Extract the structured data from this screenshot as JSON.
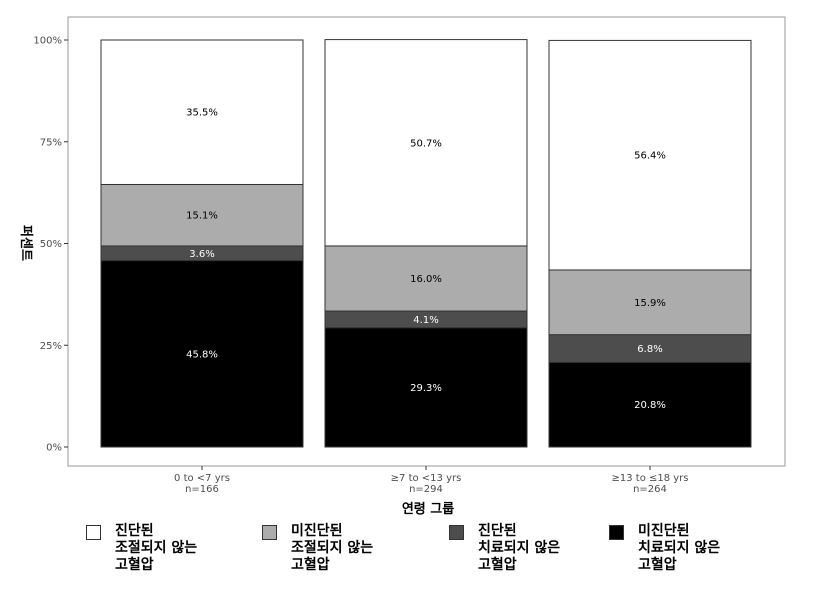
{
  "chart_data": {
    "type": "bar",
    "stacked": true,
    "ylabel": "퍼센트",
    "xlabel": "연령 그룹",
    "ylim": [
      0,
      100
    ],
    "yticks": [
      "0%",
      "25%",
      "50%",
      "75%",
      "100%"
    ],
    "categories": [
      {
        "line1": "0 to <7 yrs",
        "line2": "n=166"
      },
      {
        "line1": "≥7 to <13 yrs",
        "line2": "n=294"
      },
      {
        "line1": "≥13 to ≤18 yrs",
        "line2": "n=264"
      }
    ],
    "series": [
      {
        "name": "미진단된 치료되지 않은 고혈압",
        "color": "#000000",
        "text_color": "#ffffff",
        "values": [
          45.8,
          29.3,
          20.8
        ],
        "labels": [
          "45.8%",
          "29.3%",
          "20.8%"
        ]
      },
      {
        "name": "진단된 치료되지 않은 고혈압",
        "color": "#4d4d4d",
        "text_color": "#ffffff",
        "values": [
          3.6,
          4.1,
          6.8
        ],
        "labels": [
          "3.6%",
          "4.1%",
          "6.8%"
        ]
      },
      {
        "name": "미진단된 조절되지 않는 고혈압",
        "color": "#acacac",
        "text_color": "#000000",
        "values": [
          15.1,
          16.0,
          15.9
        ],
        "labels": [
          "15.1%",
          "16.0%",
          "15.9%"
        ]
      },
      {
        "name": "진단된 조절되지 않는 고혈압",
        "color": "#ffffff",
        "text_color": "#000000",
        "values": [
          35.5,
          50.7,
          56.4
        ],
        "labels": [
          "35.5%",
          "50.7%",
          "56.4%"
        ]
      }
    ],
    "grid": false,
    "legend_position": "bottom"
  },
  "legend": [
    {
      "text": "진단된\n조절되지 않는\n고혈압",
      "color": "#ffffff"
    },
    {
      "text": "미진단된\n조절되지 않는\n고혈압",
      "color": "#acacac"
    },
    {
      "text": "진단된\n치료되지 않은\n고혈압",
      "color": "#4d4d4d"
    },
    {
      "text": "미진단된\n치료되지 않은\n고혈압",
      "color": "#000000"
    }
  ]
}
